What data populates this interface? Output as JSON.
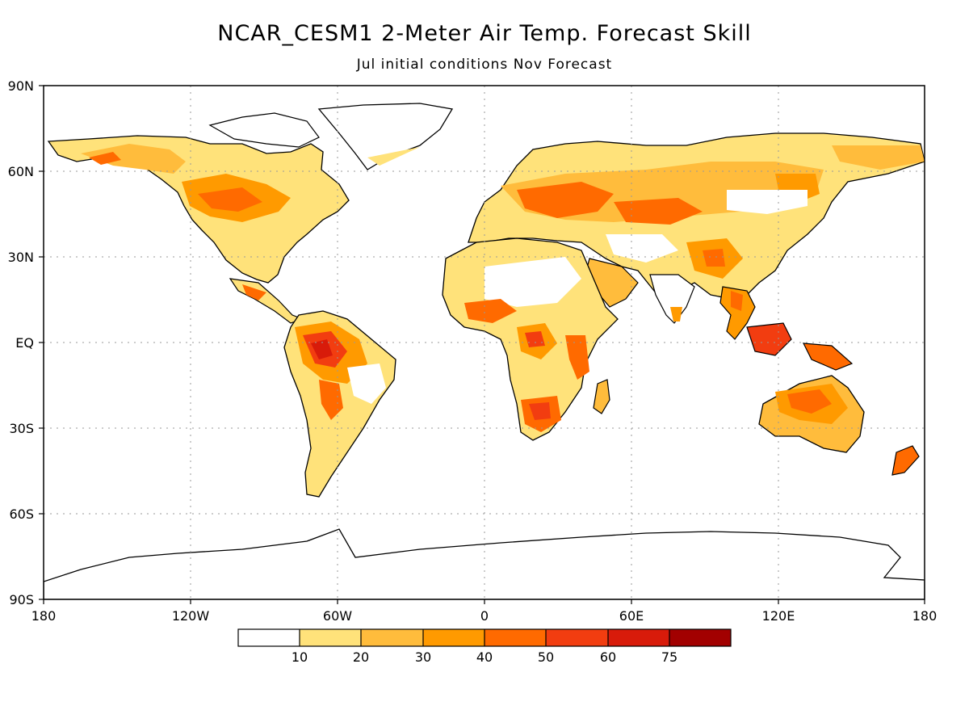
{
  "title": "NCAR_CESM1 2-Meter Air Temp. Forecast Skill",
  "subtitle": "Jul initial conditions   Nov Forecast",
  "map": {
    "lat_labels": [
      "90N",
      "60N",
      "30N",
      "EQ",
      "30S",
      "60S",
      "90S"
    ],
    "lon_labels": [
      "180",
      "120W",
      "60W",
      "0",
      "60E",
      "120E",
      "180"
    ],
    "grid": true,
    "projection": "cylindrical equidistant"
  },
  "colorbar": {
    "labels": [
      "10",
      "20",
      "30",
      "40",
      "50",
      "60",
      "75"
    ],
    "colors": [
      "#ffffff",
      "#ffe27a",
      "#ffbc3c",
      "#ff9a00",
      "#ff6a00",
      "#f23d10",
      "#d81b0a",
      "#a20000"
    ]
  }
}
